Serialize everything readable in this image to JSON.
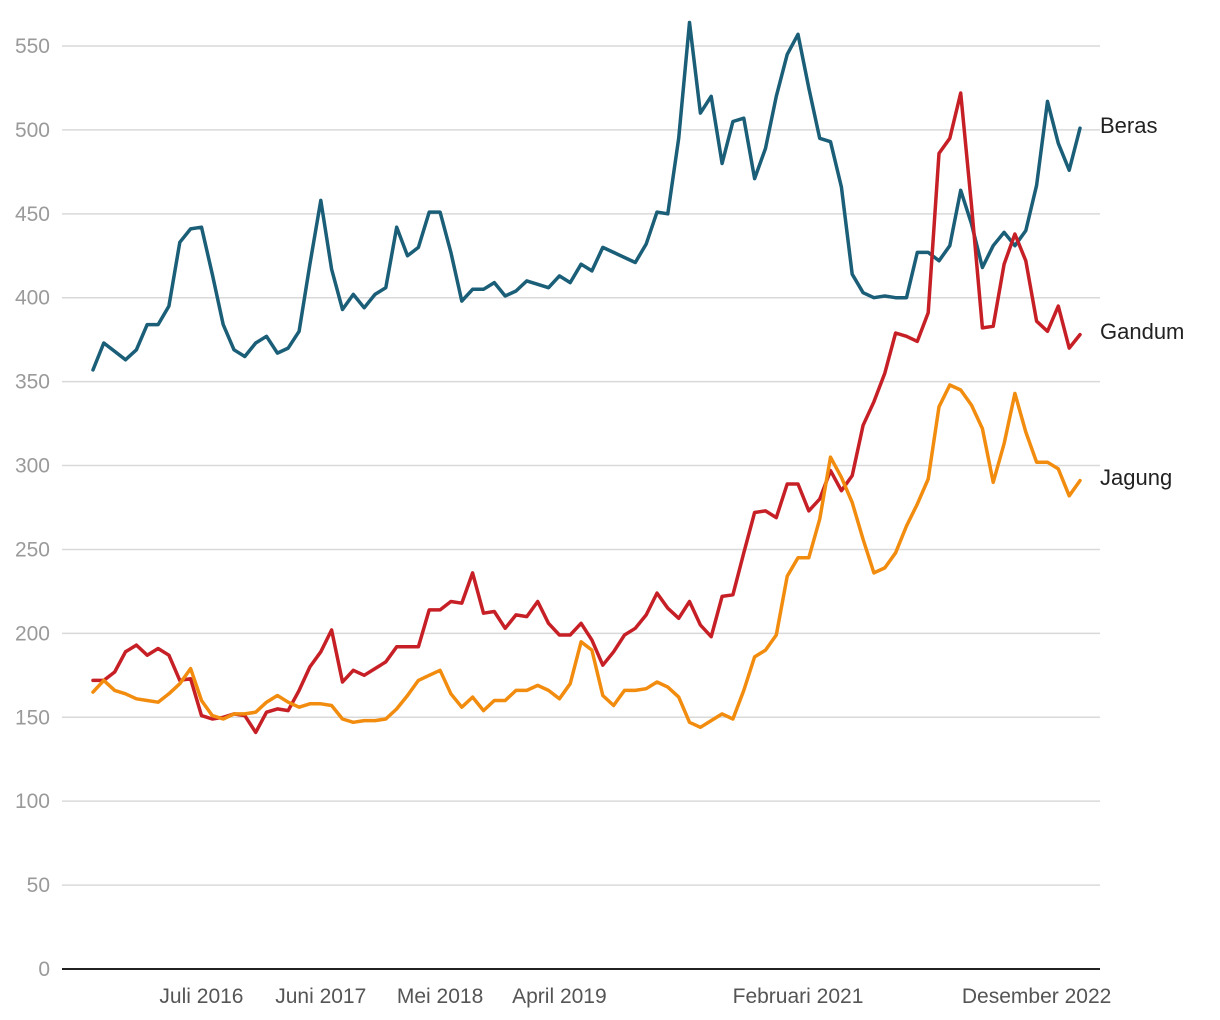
{
  "chart_data": {
    "type": "line",
    "title": "",
    "xlabel": "",
    "ylabel": "",
    "ylim": [
      0,
      560
    ],
    "yticks": [
      0,
      50,
      100,
      150,
      200,
      250,
      300,
      350,
      400,
      450,
      500,
      550
    ],
    "grid": true,
    "legend": "direct labels at right end of lines",
    "x_count": 92,
    "xtick_labels": [
      {
        "index": 10,
        "label": "Juli 2016"
      },
      {
        "index": 21,
        "label": "Juni 2017"
      },
      {
        "index": 32,
        "label": "Mei 2018"
      },
      {
        "index": 43,
        "label": "April 2019"
      },
      {
        "index": 65,
        "label": "Februari 2021"
      },
      {
        "index": 87,
        "label": "Desember 2022"
      }
    ],
    "series": [
      {
        "name": "Beras",
        "color": "#1a5e78",
        "values": [
          357,
          373,
          368,
          363,
          369,
          384,
          384,
          395,
          433,
          441,
          442,
          414,
          384,
          369,
          365,
          373,
          377,
          367,
          370,
          380,
          420,
          458,
          417,
          393,
          402,
          394,
          402,
          406,
          442,
          425,
          430,
          451,
          451,
          427,
          398,
          405,
          405,
          409,
          401,
          404,
          410,
          408,
          406,
          413,
          409,
          420,
          416,
          430,
          427,
          424,
          421,
          432,
          451,
          450,
          495,
          564,
          510,
          520,
          480,
          505,
          507,
          471,
          489,
          520,
          545,
          557,
          525,
          495,
          493,
          466,
          414,
          403,
          400,
          401,
          400,
          400,
          427,
          427,
          422,
          431,
          464,
          444,
          418,
          431,
          439,
          431,
          440,
          467,
          517,
          492,
          476,
          501
        ]
      },
      {
        "name": "Gandum",
        "color": "#c62026",
        "values": [
          172,
          172,
          177,
          189,
          193,
          187,
          191,
          187,
          172,
          173,
          151,
          149,
          150,
          152,
          151,
          141,
          153,
          155,
          154,
          166,
          180,
          189,
          202,
          171,
          178,
          175,
          179,
          183,
          192,
          192,
          192,
          214,
          214,
          219,
          218,
          236,
          212,
          213,
          203,
          211,
          210,
          219,
          206,
          199,
          199,
          206,
          196,
          181,
          189,
          199,
          203,
          211,
          224,
          215,
          209,
          219,
          205,
          198,
          222,
          223,
          248,
          272,
          273,
          269,
          289,
          289,
          273,
          280,
          297,
          285,
          294,
          324,
          338,
          355,
          379,
          377,
          374,
          391,
          486,
          495,
          522,
          455,
          382,
          383,
          420,
          438,
          422,
          386,
          380,
          395,
          370,
          378
        ]
      },
      {
        "name": "Jagung",
        "color": "#f28c0f",
        "values": [
          165,
          172,
          166,
          164,
          161,
          160,
          159,
          164,
          170,
          179,
          160,
          151,
          149,
          152,
          152,
          153,
          159,
          163,
          159,
          156,
          158,
          158,
          157,
          149,
          147,
          148,
          148,
          149,
          155,
          163,
          172,
          175,
          178,
          164,
          156,
          162,
          154,
          160,
          160,
          166,
          166,
          169,
          166,
          161,
          170,
          195,
          190,
          163,
          157,
          166,
          166,
          167,
          171,
          168,
          162,
          147,
          144,
          148,
          152,
          149,
          166,
          186,
          190,
          199,
          234,
          245,
          245,
          268,
          305,
          293,
          278,
          256,
          236,
          239,
          248,
          264,
          277,
          292,
          335,
          348,
          345,
          336,
          322,
          290,
          313,
          343,
          320,
          302,
          302,
          298,
          282,
          291
        ]
      }
    ]
  }
}
